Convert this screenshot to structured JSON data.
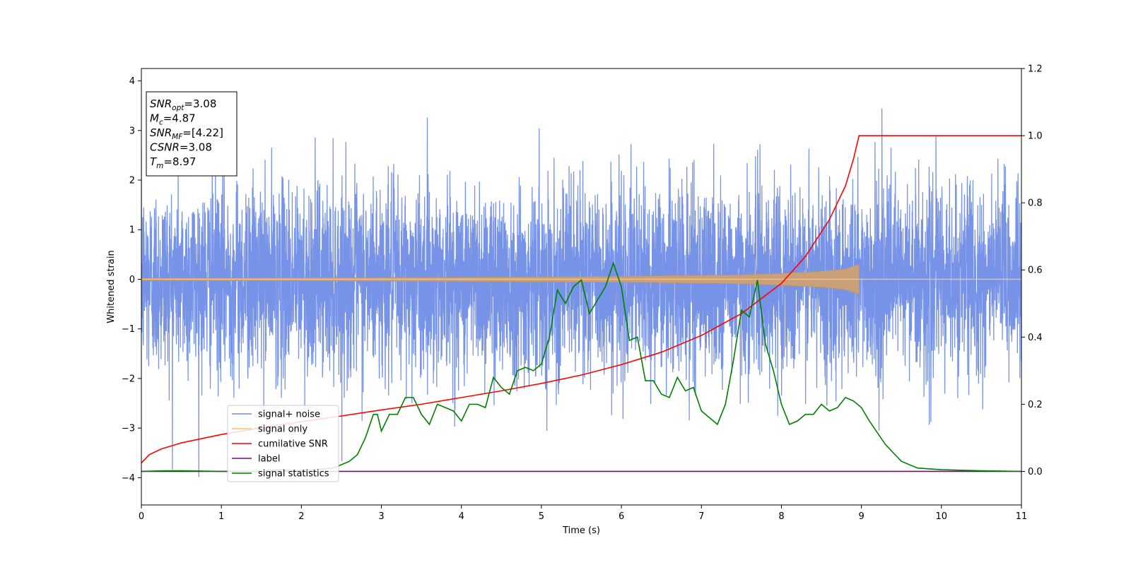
{
  "chart_data": {
    "type": "line",
    "title": "",
    "xlabel": "Time (s)",
    "ylabel": "Whitened strain",
    "y2label": "",
    "xlim": [
      0,
      11
    ],
    "ylim": [
      -4.55,
      4.25
    ],
    "y2lim": [
      -0.1,
      1.2
    ],
    "xticks": [
      0,
      1,
      2,
      3,
      4,
      5,
      6,
      7,
      8,
      9,
      10,
      11
    ],
    "yticks": [
      -4,
      -3,
      -2,
      -1,
      0,
      1,
      2,
      3,
      4
    ],
    "y2ticks": [
      0.0,
      0.2,
      0.4,
      0.6,
      0.8,
      1.0,
      1.2
    ],
    "legend_position": "lower-left",
    "grid": false,
    "series": [
      {
        "name": "signal+ noise",
        "axis": "left",
        "color": "#6b8ae6",
        "kind": "noise",
        "x_range": [
          0,
          11
        ],
        "amplitude_range": [
          -4.2,
          3.87
        ],
        "typical_amplitude": 0.95
      },
      {
        "name": "signal only",
        "axis": "left",
        "color": "#ffbf6e",
        "kind": "chirp",
        "merger_time": 8.97,
        "envelope": [
          [
            0,
            0.02
          ],
          [
            2,
            0.03
          ],
          [
            4,
            0.04
          ],
          [
            6,
            0.06
          ],
          [
            7,
            0.08
          ],
          [
            7.5,
            0.09
          ],
          [
            8,
            0.12
          ],
          [
            8.5,
            0.16
          ],
          [
            8.8,
            0.21
          ],
          [
            8.97,
            0.3
          ]
        ]
      },
      {
        "name": "cumilative SNR",
        "axis": "right",
        "color": "#ff0000",
        "points": [
          [
            0,
            0.025
          ],
          [
            0.1,
            0.05
          ],
          [
            0.25,
            0.067
          ],
          [
            0.5,
            0.085
          ],
          [
            1,
            0.11
          ],
          [
            1.5,
            0.13
          ],
          [
            2,
            0.148
          ],
          [
            2.5,
            0.165
          ],
          [
            3,
            0.183
          ],
          [
            3.5,
            0.2
          ],
          [
            4,
            0.22
          ],
          [
            4.5,
            0.24
          ],
          [
            5,
            0.262
          ],
          [
            5.5,
            0.287
          ],
          [
            6,
            0.318
          ],
          [
            6.5,
            0.355
          ],
          [
            7,
            0.405
          ],
          [
            7.5,
            0.47
          ],
          [
            8,
            0.56
          ],
          [
            8.3,
            0.64
          ],
          [
            8.6,
            0.75
          ],
          [
            8.8,
            0.85
          ],
          [
            8.9,
            0.93
          ],
          [
            8.97,
            1.0
          ],
          [
            11,
            1.0
          ]
        ]
      },
      {
        "name": "label",
        "axis": "right",
        "color": "#800080",
        "points": [
          [
            0,
            0.0
          ],
          [
            11,
            0.0
          ]
        ]
      },
      {
        "name": "signal statistics",
        "axis": "right",
        "color": "#008000",
        "points": [
          [
            0,
            0.0
          ],
          [
            0.3,
            0.002
          ],
          [
            0.5,
            0.002
          ],
          [
            1,
            0.0
          ],
          [
            1.5,
            0.0
          ],
          [
            1.7,
            0.005
          ],
          [
            2.0,
            0.002
          ],
          [
            2.4,
            0.01
          ],
          [
            2.6,
            0.03
          ],
          [
            2.7,
            0.05
          ],
          [
            2.8,
            0.1
          ],
          [
            2.9,
            0.17
          ],
          [
            2.95,
            0.17
          ],
          [
            3.0,
            0.12
          ],
          [
            3.1,
            0.17
          ],
          [
            3.2,
            0.17
          ],
          [
            3.3,
            0.22
          ],
          [
            3.4,
            0.22
          ],
          [
            3.5,
            0.17
          ],
          [
            3.6,
            0.14
          ],
          [
            3.7,
            0.2
          ],
          [
            3.8,
            0.19
          ],
          [
            3.9,
            0.18
          ],
          [
            4.0,
            0.15
          ],
          [
            4.1,
            0.2
          ],
          [
            4.2,
            0.2
          ],
          [
            4.3,
            0.19
          ],
          [
            4.4,
            0.28
          ],
          [
            4.5,
            0.25
          ],
          [
            4.6,
            0.23
          ],
          [
            4.7,
            0.3
          ],
          [
            4.8,
            0.31
          ],
          [
            4.9,
            0.3
          ],
          [
            5.0,
            0.32
          ],
          [
            5.1,
            0.4
          ],
          [
            5.2,
            0.54
          ],
          [
            5.3,
            0.5
          ],
          [
            5.4,
            0.55
          ],
          [
            5.5,
            0.57
          ],
          [
            5.6,
            0.47
          ],
          [
            5.7,
            0.51
          ],
          [
            5.8,
            0.55
          ],
          [
            5.9,
            0.62
          ],
          [
            6.0,
            0.55
          ],
          [
            6.1,
            0.39
          ],
          [
            6.2,
            0.4
          ],
          [
            6.3,
            0.27
          ],
          [
            6.4,
            0.27
          ],
          [
            6.5,
            0.23
          ],
          [
            6.6,
            0.22
          ],
          [
            6.7,
            0.28
          ],
          [
            6.8,
            0.24
          ],
          [
            6.9,
            0.25
          ],
          [
            7.0,
            0.18
          ],
          [
            7.1,
            0.16
          ],
          [
            7.2,
            0.14
          ],
          [
            7.3,
            0.2
          ],
          [
            7.4,
            0.33
          ],
          [
            7.5,
            0.48
          ],
          [
            7.6,
            0.46
          ],
          [
            7.7,
            0.57
          ],
          [
            7.8,
            0.38
          ],
          [
            7.9,
            0.3
          ],
          [
            8.0,
            0.2
          ],
          [
            8.1,
            0.14
          ],
          [
            8.2,
            0.15
          ],
          [
            8.3,
            0.17
          ],
          [
            8.4,
            0.17
          ],
          [
            8.5,
            0.2
          ],
          [
            8.6,
            0.18
          ],
          [
            8.7,
            0.19
          ],
          [
            8.8,
            0.22
          ],
          [
            8.9,
            0.21
          ],
          [
            9.0,
            0.19
          ],
          [
            9.1,
            0.15
          ],
          [
            9.3,
            0.08
          ],
          [
            9.5,
            0.03
          ],
          [
            9.7,
            0.01
          ],
          [
            10.0,
            0.005
          ],
          [
            10.5,
            0.002
          ],
          [
            11,
            0.0
          ]
        ]
      }
    ],
    "annotation": {
      "lines": [
        {
          "pre": "SNR",
          "sub": "opt",
          "post": "=3.08"
        },
        {
          "pre": "M",
          "sub": "c",
          "post": "=4.87"
        },
        {
          "pre": "SNR",
          "sub": "MF",
          "post": "=[4.22]"
        },
        {
          "pre": "CSNR",
          "sub": "",
          "post": "=3.08"
        },
        {
          "pre": "T",
          "sub": "m",
          "post": "=8.97"
        }
      ]
    }
  }
}
